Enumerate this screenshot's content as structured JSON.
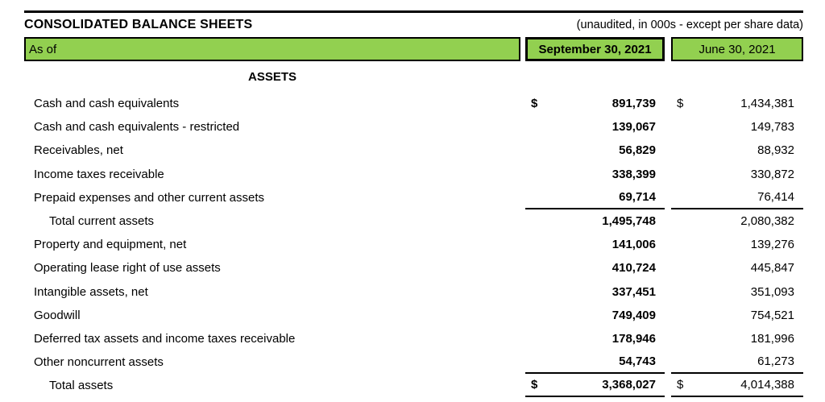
{
  "title": "CONSOLIDATED BALANCE SHEETS",
  "subtitle": "(unaudited, in 000s - except per share data)",
  "currency_symbol": "$",
  "colors": {
    "header_green": "#92D050",
    "border": "#000000"
  },
  "header": {
    "as_of": "As of",
    "col1": "September 30, 2021",
    "col2": "June 30, 2021"
  },
  "section_heading": "ASSETS",
  "rows": [
    {
      "label": "Cash and cash equivalents",
      "sep": "891,739",
      "jun": "1,434,381",
      "dollar": true
    },
    {
      "label": "Cash and cash equivalents - restricted",
      "sep": "139,067",
      "jun": "149,783"
    },
    {
      "label": "Receivables, net",
      "sep": "56,829",
      "jun": "88,932"
    },
    {
      "label": "Income taxes receivable",
      "sep": "338,399",
      "jun": "330,872"
    },
    {
      "label": "Prepaid expenses and other current assets",
      "sep": "69,714",
      "jun": "76,414",
      "rule_below": true
    },
    {
      "label": "Total current assets",
      "sep": "1,495,748",
      "jun": "2,080,382",
      "indent": 2
    },
    {
      "label": "Property and equipment, net",
      "sep": "141,006",
      "jun": "139,276"
    },
    {
      "label": "Operating lease right of use assets",
      "sep": "410,724",
      "jun": "445,847"
    },
    {
      "label": "Intangible assets, net",
      "sep": "337,451",
      "jun": "351,093"
    },
    {
      "label": "Goodwill",
      "sep": "749,409",
      "jun": "754,521"
    },
    {
      "label": "Deferred tax assets and income taxes receivable",
      "sep": "178,946",
      "jun": "181,996"
    },
    {
      "label": "Other noncurrent assets",
      "sep": "54,743",
      "jun": "61,273",
      "rule_below": true
    },
    {
      "label": "Total assets",
      "sep": "3,368,027",
      "jun": "4,014,388",
      "indent": 2,
      "dollar": true,
      "rule_below": true
    }
  ]
}
